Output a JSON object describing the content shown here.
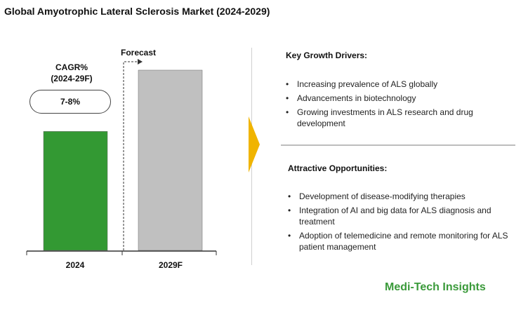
{
  "title": "Global Amyotrophic Lateral Sclerosis Market (2024-2029)",
  "cagr": {
    "label_line1": "CAGR%",
    "label_line2": "(2024-29F)",
    "value": "7-8%"
  },
  "forecast_label": "Forecast",
  "chart_data": {
    "type": "bar",
    "title": "",
    "categories": [
      "2024",
      "2029F"
    ],
    "values": [
      0.66,
      1.0
    ],
    "value_note_unit": "relative bar height (no axis printed)",
    "colors": [
      "#339933",
      "#c0c0c0"
    ],
    "xlabel": "",
    "ylabel": "",
    "grid": false
  },
  "key_growth_drivers": {
    "heading": "Key Growth Drivers:",
    "items": [
      "Increasing prevalence of ALS globally",
      "Advancements in biotechnology",
      "Growing investments in ALS research and drug development"
    ]
  },
  "attractive_opportunities": {
    "heading": "Attractive Opportunities:",
    "items": [
      "Development of disease-modifying therapies",
      "Integration of AI and big data for ALS diagnosis and treatment",
      "Adoption of telemedicine and remote monitoring for ALS patient management"
    ]
  },
  "brand": "Medi-Tech Insights",
  "colors": {
    "bar_2024": "#339933",
    "bar_2029": "#c0c0c0",
    "arrow": "#f0b400",
    "brand": "#3a9a3a"
  }
}
